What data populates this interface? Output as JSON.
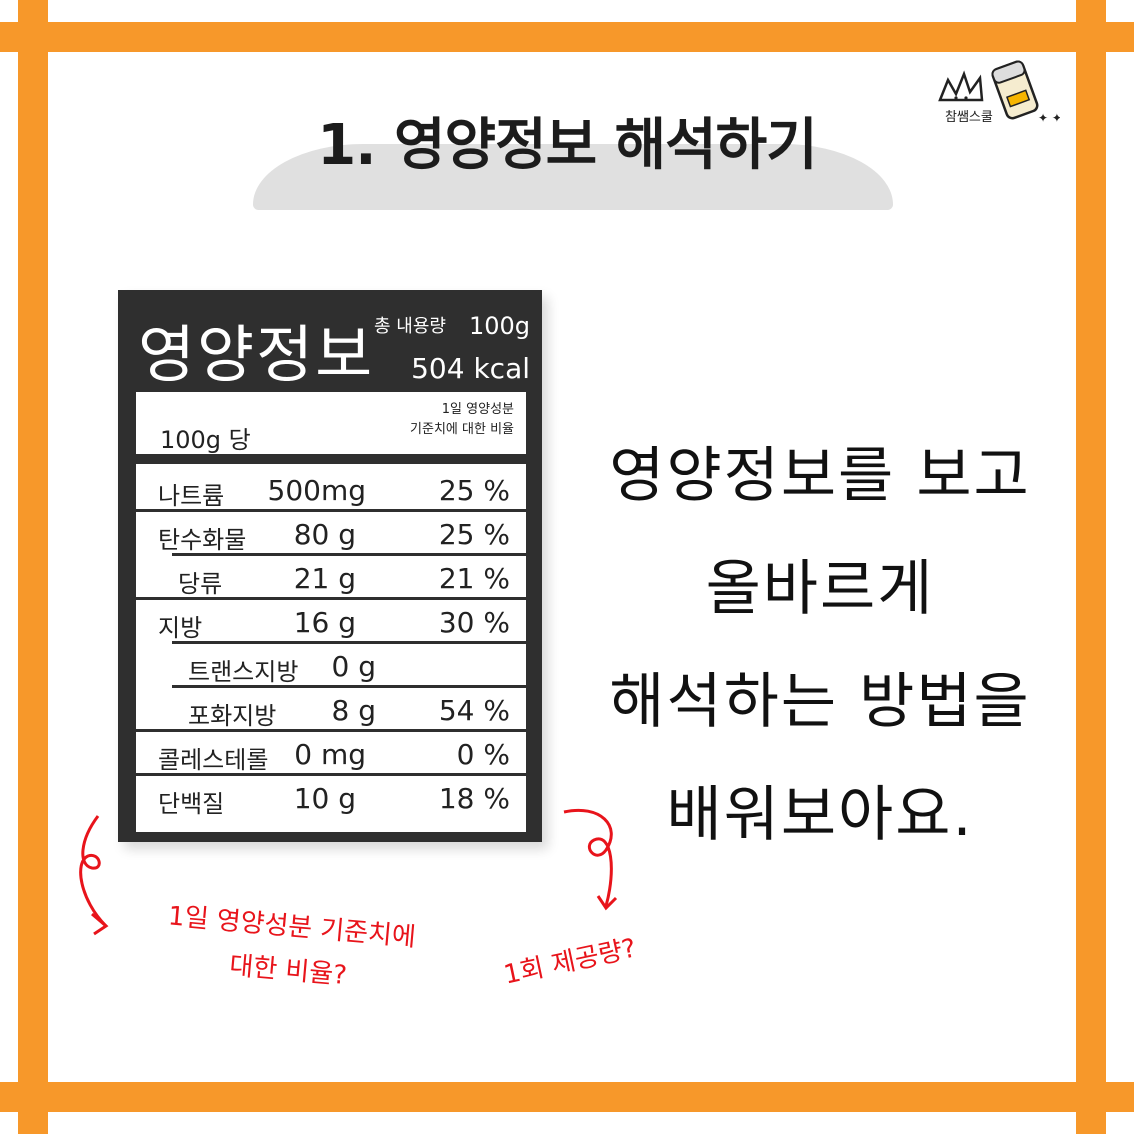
{
  "colors": {
    "frame": "#f7982a",
    "label_bg": "#2f2f2f",
    "note": "#e8141b",
    "title_bg": "#e0e0e0"
  },
  "title": "1. 영양정보 해석하기",
  "logo": {
    "text": "참쌤스쿨",
    "icon": "chamssaem-school-logo-icon"
  },
  "label": {
    "heading": "영양정보",
    "total_label": "총 내용량",
    "total_value": "100g",
    "kcal": "504 kcal",
    "per": "100g 당",
    "ref_line1": "1일 영양성분",
    "ref_line2": "기준치에 대한 비율",
    "rows": [
      {
        "name": "나트륨",
        "amount": "500mg",
        "percent": "25 %"
      },
      {
        "name": "탄수화물",
        "amount": "80 g",
        "percent": "25 %"
      },
      {
        "name": "당류",
        "amount": "21 g",
        "percent": "21 %"
      },
      {
        "name": "지방",
        "amount": "16 g",
        "percent": "30 %"
      },
      {
        "name": "트랜스지방",
        "amount": "0 g",
        "percent": ""
      },
      {
        "name": "포화지방",
        "amount": "8 g",
        "percent": "54 %"
      },
      {
        "name": "콜레스테롤",
        "amount": "0 mg",
        "percent": "0 %"
      },
      {
        "name": "단백질",
        "amount": "10 g",
        "percent": "18 %"
      }
    ]
  },
  "description": [
    "영양정보를 보고",
    "올바르게",
    "해석하는 방법을",
    "배워보아요."
  ],
  "notes": {
    "left_line1": "1일 영양성분 기준치에",
    "left_line2": "대한 비율?",
    "right": "1회 제공량?"
  }
}
